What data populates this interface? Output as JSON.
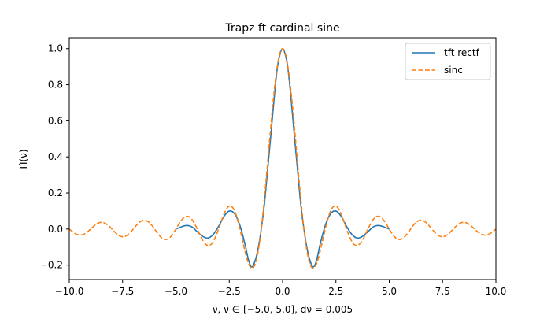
{
  "chart_data": {
    "type": "line",
    "title": "Trapz ft cardinal sine",
    "xlabel": "ν, ν ∈ [−5.0, 5.0], dν = 0.005",
    "ylabel": "Π̂(ν)",
    "xlim": [
      -10.0,
      10.0
    ],
    "ylim": [
      -0.28,
      1.06
    ],
    "x_ticks": [
      -10.0,
      -7.5,
      -5.0,
      -2.5,
      0.0,
      2.5,
      5.0,
      7.5,
      10.0
    ],
    "x_tick_labels": [
      "−10.0",
      "−7.5",
      "−5.0",
      "−2.5",
      "0.0",
      "2.5",
      "5.0",
      "7.5",
      "10.0"
    ],
    "y_ticks": [
      -0.2,
      0.0,
      0.2,
      0.4,
      0.6,
      0.8,
      1.0
    ],
    "y_tick_labels": [
      "−0.2",
      "0.0",
      "0.2",
      "0.4",
      "0.6",
      "0.8",
      "1.0"
    ],
    "grid": false,
    "legend_position": "top-right",
    "series": [
      {
        "name": "tft rectf",
        "color": "#1f77b4",
        "style": "solid",
        "points": [
          [
            -5.0,
            0.0
          ],
          [
            -4.75,
            0.012
          ],
          [
            -4.5,
            0.02
          ],
          [
            -4.25,
            0.012
          ],
          [
            -4.0,
            -0.015
          ],
          [
            -3.75,
            -0.04
          ],
          [
            -3.5,
            -0.05
          ],
          [
            -3.25,
            -0.03
          ],
          [
            -3.0,
            0.015
          ],
          [
            -2.75,
            0.07
          ],
          [
            -2.5,
            0.1
          ],
          [
            -2.25,
            0.085
          ],
          [
            -2.0,
            0.02
          ],
          [
            -1.75,
            -0.09
          ],
          [
            -1.6,
            -0.17
          ],
          [
            -1.45,
            -0.21
          ],
          [
            -1.3,
            -0.18
          ],
          [
            -1.15,
            -0.11
          ],
          [
            -1.0,
            0.0
          ],
          [
            -0.85,
            0.14
          ],
          [
            -0.7,
            0.33
          ],
          [
            -0.55,
            0.52
          ],
          [
            -0.4,
            0.72
          ],
          [
            -0.25,
            0.89
          ],
          [
            -0.12,
            0.97
          ],
          [
            0.0,
            1.0
          ],
          [
            0.12,
            0.97
          ],
          [
            0.25,
            0.89
          ],
          [
            0.4,
            0.72
          ],
          [
            0.55,
            0.52
          ],
          [
            0.7,
            0.33
          ],
          [
            0.85,
            0.14
          ],
          [
            1.0,
            0.0
          ],
          [
            1.15,
            -0.11
          ],
          [
            1.3,
            -0.18
          ],
          [
            1.45,
            -0.21
          ],
          [
            1.6,
            -0.17
          ],
          [
            1.75,
            -0.09
          ],
          [
            2.0,
            0.02
          ],
          [
            2.25,
            0.085
          ],
          [
            2.5,
            0.1
          ],
          [
            2.75,
            0.07
          ],
          [
            3.0,
            0.015
          ],
          [
            3.25,
            -0.03
          ],
          [
            3.5,
            -0.05
          ],
          [
            3.75,
            -0.04
          ],
          [
            4.0,
            -0.015
          ],
          [
            4.25,
            0.012
          ],
          [
            4.5,
            0.02
          ],
          [
            4.75,
            0.012
          ],
          [
            5.0,
            0.0
          ]
        ]
      },
      {
        "name": "sinc",
        "color": "#ff7f0e",
        "style": "dashed",
        "function": "sin(pi*nu)/(pi*nu)",
        "x_range": [
          -10.0,
          10.0
        ]
      }
    ]
  }
}
